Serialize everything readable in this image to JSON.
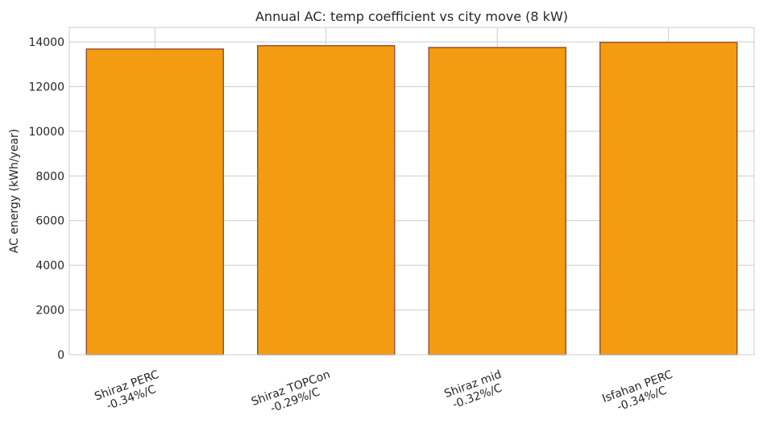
{
  "chart_data": {
    "type": "bar",
    "title": "Annual AC: temp coefficient vs city move (8 kW)",
    "xlabel": "",
    "ylabel": "AC energy (kWh/year)",
    "categories": [
      [
        "Shiraz PERC",
        "-0.34%/C"
      ],
      [
        "Shiraz TOPCon",
        "-0.29%/C"
      ],
      [
        "Shiraz mid",
        "-0.32%/C"
      ],
      [
        "Isfahan PERC",
        "-0.34%/C"
      ]
    ],
    "values": [
      13680,
      13830,
      13750,
      13980
    ],
    "ylim": [
      0,
      14650
    ],
    "yticks": [
      0,
      2000,
      4000,
      6000,
      8000,
      10000,
      12000,
      14000
    ],
    "grid": true,
    "colors": {
      "bar_fill": "#f39c12",
      "bar_edge": "#a0522d",
      "grid": "#cccccc",
      "axes": "#cccccc"
    }
  }
}
